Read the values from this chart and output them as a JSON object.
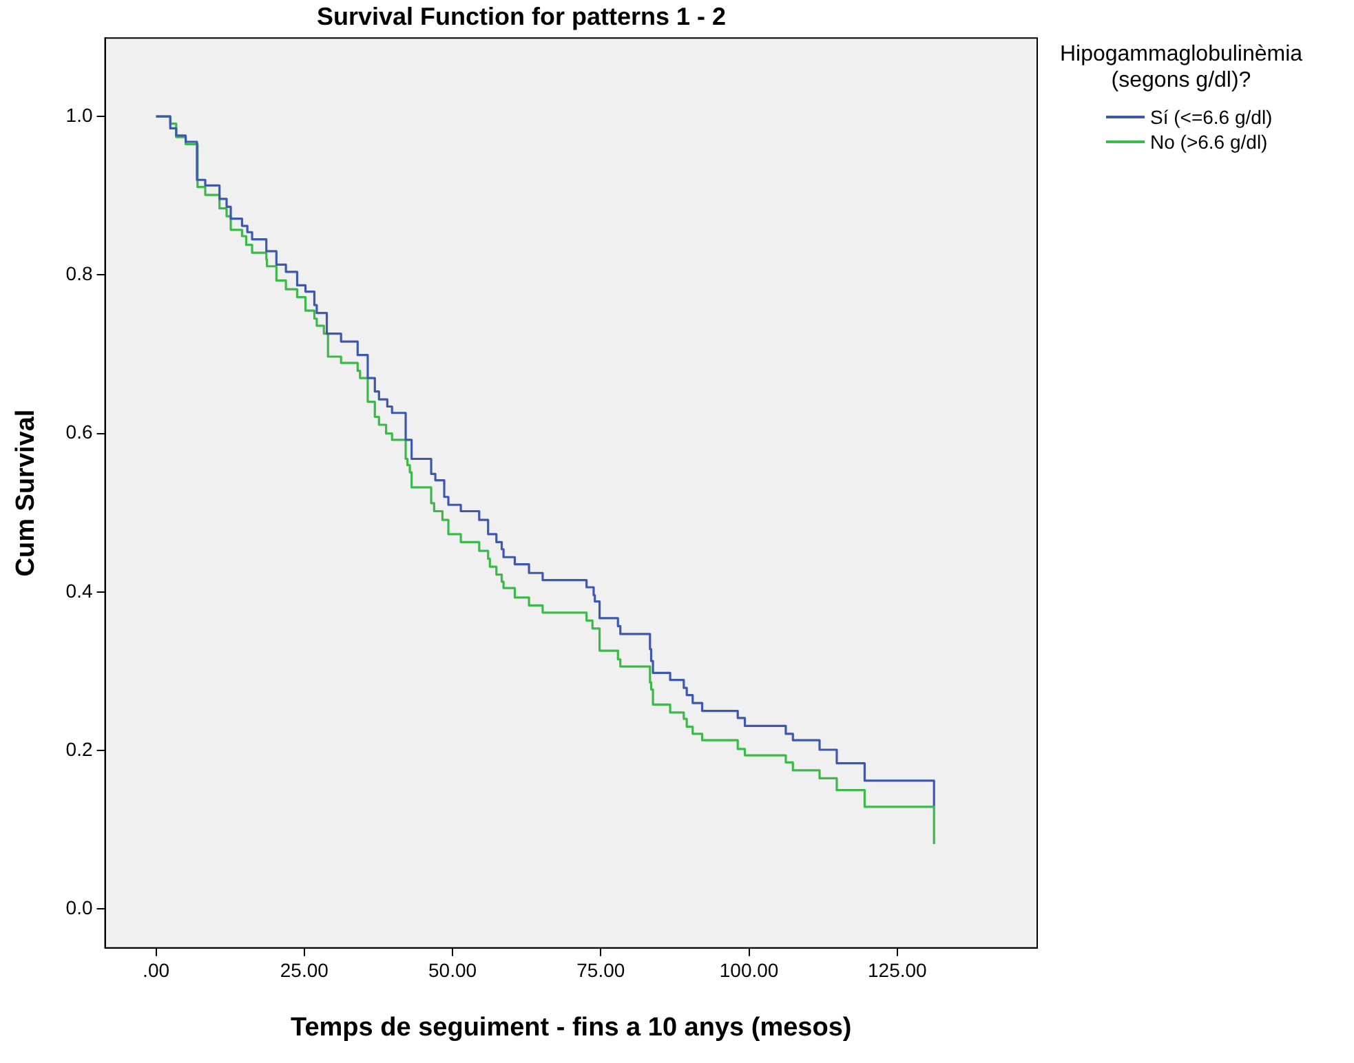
{
  "chart_data": {
    "type": "step",
    "title": "Survival Function for patterns 1 - 2",
    "xlabel": "Temps de seguiment - fins a 10 anys (mesos)",
    "ylabel": "Cum Survival",
    "legend_title": "Hipogammaglobulinèmia (segons g/dl)?",
    "legend": "right",
    "grid": false,
    "marker": "none",
    "xlim": [
      -8.6,
      148.6
    ],
    "xticks": [
      {
        "value": 0,
        "label": ".00"
      },
      {
        "value": 25,
        "label": "25.00"
      },
      {
        "value": 50,
        "label": "50.00"
      },
      {
        "value": 75,
        "label": "75.00"
      },
      {
        "value": 100,
        "label": "100.00"
      },
      {
        "value": 125,
        "label": "125.00"
      }
    ],
    "ylim": [
      -0.049,
      1.099
    ],
    "yticks": [
      {
        "value": 0,
        "label": "0.0"
      },
      {
        "value": 0.2,
        "label": "0.2"
      },
      {
        "value": 0.4,
        "label": "0.4"
      },
      {
        "value": 0.6,
        "label": "0.6"
      },
      {
        "value": 0.8,
        "label": "0.8"
      },
      {
        "value": 1,
        "label": "1.0"
      }
    ],
    "series": [
      {
        "name": "Sí (<=6.6 g/dl)",
        "color": "#3e58ac",
        "x": [
          0,
          2.4,
          3.4,
          5.0,
          6.9,
          8.3,
          10.7,
          11.9,
          12.6,
          14.5,
          15.4,
          16.2,
          18.6,
          20.3,
          21.9,
          23.8,
          25.2,
          26.7,
          27.1,
          28.8,
          31.2,
          34.0,
          35.7,
          36.9,
          37.6,
          39.0,
          39.8,
          42.1,
          43.1,
          46.4,
          47.1,
          48.6,
          49.3,
          51.4,
          54.5,
          56.0,
          57.4,
          58.3,
          58.6,
          60.5,
          62.9,
          65.2,
          72.6,
          73.8,
          74.0,
          74.8,
          77.9,
          78.3,
          83.3,
          83.5,
          83.8,
          86.7,
          89.0,
          89.5,
          90.5,
          92.1,
          98.1,
          99.3,
          106.2,
          107.4,
          111.9,
          114.8,
          119.5,
          131.2
        ],
        "values": [
          1,
          0.985,
          0.976,
          0.968,
          0.92,
          0.913,
          0.896,
          0.886,
          0.871,
          0.862,
          0.854,
          0.845,
          0.83,
          0.813,
          0.804,
          0.787,
          0.779,
          0.762,
          0.752,
          0.726,
          0.716,
          0.699,
          0.67,
          0.653,
          0.643,
          0.634,
          0.626,
          0.592,
          0.568,
          0.549,
          0.541,
          0.52,
          0.51,
          0.502,
          0.491,
          0.473,
          0.463,
          0.454,
          0.444,
          0.435,
          0.424,
          0.415,
          0.406,
          0.396,
          0.388,
          0.367,
          0.357,
          0.347,
          0.328,
          0.313,
          0.298,
          0.289,
          0.279,
          0.27,
          0.26,
          0.25,
          0.241,
          0.231,
          0.221,
          0.213,
          0.201,
          0.184,
          0.162,
          0.13
        ]
      },
      {
        "name": "No (>6.6 g/dl)",
        "color": "#3cb94a",
        "x": [
          0,
          2.4,
          3.4,
          5.0,
          7.0,
          8.3,
          10.7,
          11.9,
          12.6,
          14.5,
          15.2,
          16.2,
          18.6,
          18.7,
          20.3,
          21.9,
          23.8,
          25.2,
          26.7,
          27.1,
          28.3,
          29.0,
          31.2,
          34.0,
          34.4,
          35.7,
          36.9,
          37.6,
          38.8,
          39.8,
          42.1,
          42.4,
          42.8,
          43.1,
          46.4,
          46.9,
          48.3,
          49.3,
          51.4,
          54.5,
          56.0,
          56.3,
          57.4,
          58.3,
          58.6,
          60.5,
          62.9,
          65.2,
          72.6,
          73.6,
          74.8,
          77.9,
          78.3,
          83.3,
          83.5,
          83.8,
          86.7,
          89.0,
          89.5,
          90.5,
          92.1,
          98.1,
          99.3,
          106.2,
          107.4,
          111.9,
          114.8,
          119.5,
          131.2
        ],
        "values": [
          1,
          0.991,
          0.974,
          0.965,
          0.911,
          0.901,
          0.884,
          0.874,
          0.857,
          0.849,
          0.838,
          0.828,
          0.82,
          0.811,
          0.793,
          0.782,
          0.772,
          0.755,
          0.745,
          0.736,
          0.726,
          0.697,
          0.689,
          0.679,
          0.67,
          0.64,
          0.621,
          0.611,
          0.6,
          0.592,
          0.568,
          0.56,
          0.551,
          0.532,
          0.512,
          0.502,
          0.491,
          0.473,
          0.463,
          0.452,
          0.442,
          0.432,
          0.422,
          0.413,
          0.405,
          0.393,
          0.383,
          0.374,
          0.364,
          0.354,
          0.326,
          0.315,
          0.306,
          0.286,
          0.277,
          0.258,
          0.248,
          0.24,
          0.23,
          0.221,
          0.213,
          0.202,
          0.194,
          0.185,
          0.175,
          0.165,
          0.15,
          0.129,
          0.082
        ]
      }
    ]
  }
}
